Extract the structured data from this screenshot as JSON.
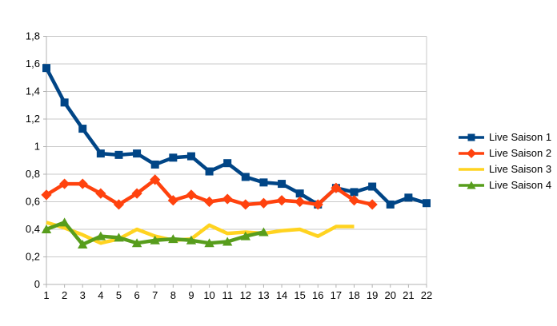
{
  "chart_data": {
    "type": "line",
    "title": "",
    "xlabel": "",
    "ylabel": "",
    "grid": "horizontal",
    "legend_position": "right",
    "background": "#ffffff",
    "gridline_color": "#c9c9c9",
    "axis_color": "#b3b3b3",
    "text_color": "#000000",
    "ylim": [
      0,
      1.8
    ],
    "ytick_step": 0.2,
    "ytick_labels": [
      "0",
      "0,2",
      "0,4",
      "0,6",
      "0,8",
      "1",
      "1,2",
      "1,4",
      "1,6",
      "1,8"
    ],
    "x": [
      1,
      2,
      3,
      4,
      5,
      6,
      7,
      8,
      9,
      10,
      11,
      12,
      13,
      14,
      15,
      16,
      17,
      18,
      19,
      20,
      21,
      22
    ],
    "xtick_labels": [
      "1",
      "2",
      "3",
      "4",
      "5",
      "6",
      "7",
      "8",
      "9",
      "10",
      "11",
      "12",
      "13",
      "14",
      "15",
      "16",
      "17",
      "18",
      "19",
      "20",
      "21",
      "22"
    ],
    "series": [
      {
        "name": "Live Saison 1",
        "color": "#004586",
        "marker": "square",
        "values": [
          1.57,
          1.32,
          1.13,
          0.95,
          0.94,
          0.95,
          0.87,
          0.92,
          0.93,
          0.82,
          0.88,
          0.78,
          0.74,
          0.73,
          0.66,
          0.58,
          0.7,
          0.67,
          0.71,
          0.58,
          0.63,
          0.59
        ]
      },
      {
        "name": "Live Saison 2",
        "color": "#ff420e",
        "marker": "diamond",
        "values": [
          0.65,
          0.73,
          0.73,
          0.66,
          0.58,
          0.66,
          0.76,
          0.61,
          0.65,
          0.6,
          0.62,
          0.58,
          0.59,
          0.61,
          0.6,
          0.58,
          0.7,
          0.61,
          0.58
        ]
      },
      {
        "name": "Live Saison 3",
        "color": "#ffd320",
        "marker": "none",
        "values": [
          0.45,
          0.41,
          0.36,
          0.3,
          0.33,
          0.4,
          0.35,
          0.32,
          0.33,
          0.43,
          0.37,
          0.38,
          0.37,
          0.39,
          0.4,
          0.35,
          0.42,
          0.42
        ]
      },
      {
        "name": "Live Saison 4",
        "color": "#579d1c",
        "marker": "triangle",
        "values": [
          0.4,
          0.45,
          0.29,
          0.35,
          0.34,
          0.3,
          0.32,
          0.33,
          0.32,
          0.3,
          0.31,
          0.35,
          0.38
        ]
      }
    ]
  }
}
